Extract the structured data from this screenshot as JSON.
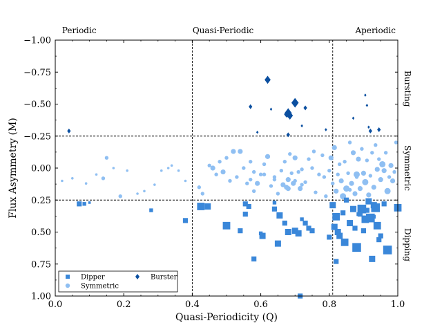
{
  "chart_data": {
    "type": "scatter",
    "xlabel": "Quasi-Periodicity (Q)",
    "ylabel": "Flux Asymmetry (M)",
    "xlim": [
      0,
      1
    ],
    "ylim": [
      1.0,
      -1.0
    ],
    "y_inverted": true,
    "x_ticks": [
      0,
      0.2,
      0.4,
      0.6,
      0.8,
      1.0
    ],
    "x_tick_labels": [
      "0.0",
      "0.2",
      "0.4",
      "0.6",
      "0.8",
      "1.0"
    ],
    "y_ticks": [
      -1.0,
      -0.75,
      -0.5,
      -0.25,
      0.0,
      0.25,
      0.5,
      0.75,
      1.0
    ],
    "y_tick_labels": [
      "−1.00",
      "−0.75",
      "−0.50",
      "−0.25",
      "0.00",
      "0.25",
      "0.50",
      "0.75",
      "1.00"
    ],
    "grid": false,
    "legend_position": "lower-left",
    "vertical_lines": [
      0.4,
      0.81
    ],
    "horizontal_lines": [
      -0.25,
      0.25
    ],
    "top_labels": [
      {
        "text": "Periodic",
        "x": 0.07
      },
      {
        "text": "Quasi-Periodic",
        "x": 0.49
      },
      {
        "text": "Aperiodic",
        "x": 0.935
      }
    ],
    "right_labels": [
      {
        "text": "Bursting",
        "y": -0.62
      },
      {
        "text": "Symmetric",
        "y": 0.0
      },
      {
        "text": "Dipping",
        "y": 0.6
      }
    ],
    "series": [
      {
        "name": "Dipper",
        "marker": "square",
        "color": "#3a87d9",
        "points": [
          [
            0.07,
            0.28,
            4
          ],
          [
            0.085,
            0.28,
            3
          ],
          [
            0.1,
            0.27,
            2
          ],
          [
            0.28,
            0.33,
            3
          ],
          [
            0.38,
            0.41,
            4
          ],
          [
            0.425,
            0.3,
            6
          ],
          [
            0.445,
            0.3,
            5
          ],
          [
            0.5,
            0.45,
            6
          ],
          [
            0.54,
            0.49,
            4
          ],
          [
            0.555,
            0.36,
            4
          ],
          [
            0.555,
            0.28,
            4
          ],
          [
            0.565,
            0.3,
            4
          ],
          [
            0.58,
            0.71,
            4
          ],
          [
            0.605,
            0.53,
            5
          ],
          [
            0.64,
            0.32,
            4
          ],
          [
            0.65,
            0.59,
            5
          ],
          [
            0.655,
            0.37,
            5
          ],
          [
            0.67,
            0.43,
            4
          ],
          [
            0.68,
            0.5,
            5
          ],
          [
            0.7,
            0.49,
            5
          ],
          [
            0.71,
            0.51,
            5
          ],
          [
            0.73,
            0.43,
            4
          ],
          [
            0.74,
            0.47,
            4
          ],
          [
            0.75,
            0.49,
            4
          ],
          [
            0.72,
            0.4,
            3
          ],
          [
            0.8,
            0.54,
            4
          ],
          [
            0.81,
            0.29,
            5
          ],
          [
            0.815,
            0.46,
            5
          ],
          [
            0.82,
            0.38,
            6
          ],
          [
            0.825,
            0.5,
            5
          ],
          [
            0.83,
            0.53,
            5
          ],
          [
            0.84,
            0.35,
            4
          ],
          [
            0.845,
            0.58,
            6
          ],
          [
            0.86,
            0.43,
            5
          ],
          [
            0.87,
            0.32,
            5
          ],
          [
            0.875,
            0.47,
            4
          ],
          [
            0.88,
            0.62,
            7
          ],
          [
            0.89,
            0.36,
            4
          ],
          [
            0.895,
            0.32,
            7
          ],
          [
            0.9,
            0.49,
            4
          ],
          [
            0.905,
            0.4,
            6
          ],
          [
            0.91,
            0.33,
            4
          ],
          [
            0.915,
            0.26,
            5
          ],
          [
            0.92,
            0.39,
            7
          ],
          [
            0.925,
            0.71,
            5
          ],
          [
            0.93,
            0.29,
            5
          ],
          [
            0.935,
            0.31,
            7
          ],
          [
            0.94,
            0.45,
            6
          ],
          [
            0.945,
            0.56,
            4
          ],
          [
            0.95,
            0.53,
            4
          ],
          [
            0.96,
            0.28,
            4
          ],
          [
            0.97,
            0.64,
            7
          ],
          [
            1.0,
            0.31,
            6
          ],
          [
            0.715,
            1.0,
            4
          ],
          [
            0.82,
            0.73,
            4
          ],
          [
            0.6,
            0.51,
            3
          ],
          [
            0.64,
            0.27,
            3
          ],
          [
            0.85,
            0.25,
            4
          ],
          [
            0.885,
            0.36,
            3
          ],
          [
            0.93,
            0.38,
            3
          ]
        ]
      },
      {
        "name": "Symmetric",
        "marker": "circle",
        "color": "#8fbff2",
        "points": [
          [
            0.02,
            0.1,
            2
          ],
          [
            0.05,
            0.08,
            2
          ],
          [
            0.09,
            0.12,
            2
          ],
          [
            0.12,
            0.05,
            2
          ],
          [
            0.14,
            0.08,
            3
          ],
          [
            0.15,
            -0.08,
            3
          ],
          [
            0.17,
            0.0,
            2
          ],
          [
            0.19,
            0.22,
            3
          ],
          [
            0.21,
            0.02,
            2
          ],
          [
            0.24,
            0.2,
            2
          ],
          [
            0.26,
            0.18,
            2
          ],
          [
            0.29,
            0.13,
            2
          ],
          [
            0.31,
            0.02,
            2
          ],
          [
            0.33,
            0.0,
            2
          ],
          [
            0.34,
            -0.02,
            2
          ],
          [
            0.36,
            0.02,
            2
          ],
          [
            0.38,
            0.1,
            2
          ],
          [
            0.42,
            0.15,
            3
          ],
          [
            0.43,
            0.2,
            3
          ],
          [
            0.45,
            -0.02,
            3
          ],
          [
            0.46,
            0.0,
            4
          ],
          [
            0.47,
            0.05,
            3
          ],
          [
            0.48,
            -0.05,
            3
          ],
          [
            0.49,
            0.03,
            4
          ],
          [
            0.5,
            -0.08,
            3
          ],
          [
            0.51,
            0.1,
            3
          ],
          [
            0.52,
            -0.13,
            4
          ],
          [
            0.53,
            0.07,
            3
          ],
          [
            0.55,
            0.0,
            3
          ],
          [
            0.56,
            0.12,
            3
          ],
          [
            0.57,
            -0.05,
            3
          ],
          [
            0.58,
            0.18,
            3
          ],
          [
            0.59,
            0.12,
            4
          ],
          [
            0.6,
            0.05,
            3
          ],
          [
            0.61,
            -0.03,
            3
          ],
          [
            0.62,
            -0.09,
            4
          ],
          [
            0.63,
            0.14,
            3
          ],
          [
            0.64,
            0.07,
            3
          ],
          [
            0.65,
            0.2,
            3
          ],
          [
            0.66,
            0.02,
            3
          ],
          [
            0.665,
            0.13,
            4
          ],
          [
            0.67,
            -0.05,
            3
          ],
          [
            0.675,
            0.15,
            4
          ],
          [
            0.68,
            0.09,
            4
          ],
          [
            0.685,
            -0.11,
            3
          ],
          [
            0.69,
            0.04,
            3
          ],
          [
            0.695,
            0.12,
            4
          ],
          [
            0.7,
            0.1,
            3
          ],
          [
            0.7,
            -0.08,
            4
          ],
          [
            0.71,
            0.03,
            3
          ],
          [
            0.715,
            0.16,
            4
          ],
          [
            0.72,
            0.01,
            3
          ],
          [
            0.73,
            0.11,
            3
          ],
          [
            0.74,
            -0.07,
            3
          ],
          [
            0.75,
            0.0,
            3
          ],
          [
            0.755,
            -0.13,
            3
          ],
          [
            0.76,
            0.19,
            3
          ],
          [
            0.77,
            0.05,
            3
          ],
          [
            0.78,
            -0.1,
            3
          ],
          [
            0.785,
            0.07,
            3
          ],
          [
            0.79,
            0.22,
            3
          ],
          [
            0.8,
            0.02,
            3
          ],
          [
            0.805,
            -0.08,
            4
          ],
          [
            0.81,
            0.12,
            3
          ],
          [
            0.815,
            -0.16,
            4
          ],
          [
            0.82,
            0.18,
            4
          ],
          [
            0.825,
            0.05,
            3
          ],
          [
            0.83,
            -0.03,
            3
          ],
          [
            0.835,
            0.1,
            4
          ],
          [
            0.84,
            0.22,
            5
          ],
          [
            0.845,
            -0.05,
            3
          ],
          [
            0.85,
            0.16,
            5
          ],
          [
            0.855,
            0.04,
            3
          ],
          [
            0.86,
            -0.2,
            3
          ],
          [
            0.865,
            0.12,
            4
          ],
          [
            0.87,
            -0.12,
            4
          ],
          [
            0.875,
            0.2,
            4
          ],
          [
            0.88,
            0.07,
            3
          ],
          [
            0.885,
            -0.07,
            4
          ],
          [
            0.89,
            0.16,
            4
          ],
          [
            0.895,
            -0.15,
            3
          ],
          [
            0.9,
            0.04,
            4
          ],
          [
            0.905,
            0.11,
            5
          ],
          [
            0.91,
            -0.06,
            3
          ],
          [
            0.915,
            0.21,
            4
          ],
          [
            0.92,
            0.06,
            3
          ],
          [
            0.925,
            -0.12,
            3
          ],
          [
            0.93,
            0.15,
            4
          ],
          [
            0.935,
            -0.18,
            3
          ],
          [
            0.94,
            0.01,
            4
          ],
          [
            0.945,
            -0.07,
            3
          ],
          [
            0.95,
            0.09,
            4
          ],
          [
            0.955,
            -0.03,
            5
          ],
          [
            0.96,
            0.02,
            4
          ],
          [
            0.965,
            -0.12,
            3
          ],
          [
            0.97,
            0.18,
            5
          ],
          [
            0.975,
            0.07,
            3
          ],
          [
            0.98,
            -0.02,
            4
          ],
          [
            0.985,
            0.1,
            4
          ],
          [
            0.99,
            0.03,
            3
          ],
          [
            0.995,
            -0.2,
            3
          ],
          [
            0.72,
            0.13,
            3
          ],
          [
            0.68,
            0.16,
            4
          ],
          [
            0.64,
            0.09,
            3
          ],
          [
            0.61,
            0.05,
            3
          ],
          [
            0.58,
            0.03,
            3
          ],
          [
            0.54,
            -0.13,
            4
          ],
          [
            0.57,
            0.09,
            3
          ],
          [
            0.88,
            0.05,
            5
          ],
          [
            0.86,
            0.17,
            3
          ]
        ]
      },
      {
        "name": "Burster",
        "marker": "diamond",
        "color": "#0b4fa0",
        "points": [
          [
            0.04,
            -0.29,
            3
          ],
          [
            0.57,
            -0.48,
            3
          ],
          [
            0.59,
            -0.28,
            2
          ],
          [
            0.62,
            -0.69,
            5
          ],
          [
            0.63,
            -0.46,
            2
          ],
          [
            0.68,
            -0.26,
            3
          ],
          [
            0.68,
            -0.43,
            6
          ],
          [
            0.685,
            -0.41,
            5
          ],
          [
            0.675,
            -0.42,
            4
          ],
          [
            0.7,
            -0.51,
            6
          ],
          [
            0.72,
            -0.33,
            2
          ],
          [
            0.73,
            -0.47,
            3
          ],
          [
            0.79,
            -0.3,
            2
          ],
          [
            0.87,
            -0.39,
            2
          ],
          [
            0.905,
            -0.57,
            2
          ],
          [
            0.91,
            -0.49,
            2
          ],
          [
            0.915,
            -0.32,
            2
          ],
          [
            0.92,
            -0.29,
            3
          ],
          [
            0.945,
            -0.3,
            3
          ]
        ]
      }
    ]
  }
}
